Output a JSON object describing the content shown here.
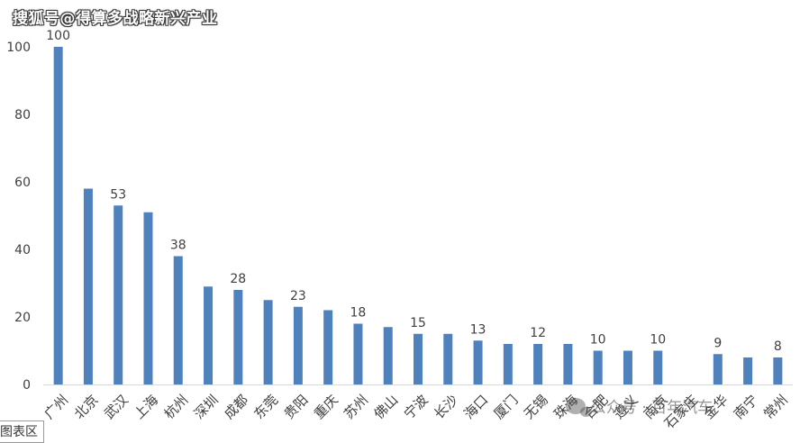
{
  "header": {
    "watermark": "搜狐号@得算多战略新兴产业"
  },
  "overlay": {
    "wechat_watermark": "公众号 · 百年汽车",
    "chart_area_tag": "图表区"
  },
  "colors": {
    "bar": "#4F81BD",
    "axis": "#d9d9d9",
    "text": "#404040"
  },
  "chart_data": {
    "type": "bar",
    "title": "",
    "xlabel": "",
    "ylabel": "",
    "ylim": [
      0,
      100
    ],
    "yticks": [
      0,
      20,
      40,
      60,
      80,
      100
    ],
    "grid": false,
    "categories": [
      "广州",
      "北京",
      "武汉",
      "上海",
      "杭州",
      "深圳",
      "成都",
      "东莞",
      "贵阳",
      "重庆",
      "苏州",
      "佛山",
      "宁波",
      "长沙",
      "海口",
      "厦门",
      "无锡",
      "珠海",
      "合肥",
      "遵义",
      "南京",
      "石家庄",
      "金华",
      "南宁",
      "常州"
    ],
    "values": [
      100,
      58,
      53,
      51,
      38,
      29,
      28,
      25,
      23,
      22,
      18,
      17,
      15,
      15,
      13,
      12,
      12,
      12,
      10,
      10,
      10,
      0,
      9,
      8,
      8
    ],
    "data_labels": [
      {
        "index": 0,
        "text": "100"
      },
      {
        "index": 2,
        "text": "53"
      },
      {
        "index": 4,
        "text": "38"
      },
      {
        "index": 6,
        "text": "28"
      },
      {
        "index": 8,
        "text": "23"
      },
      {
        "index": 10,
        "text": "18"
      },
      {
        "index": 12,
        "text": "15"
      },
      {
        "index": 14,
        "text": "13"
      },
      {
        "index": 16,
        "text": "12"
      },
      {
        "index": 18,
        "text": "10"
      },
      {
        "index": 20,
        "text": "10"
      },
      {
        "index": 22,
        "text": "9"
      },
      {
        "index": 24,
        "text": "8"
      }
    ]
  }
}
